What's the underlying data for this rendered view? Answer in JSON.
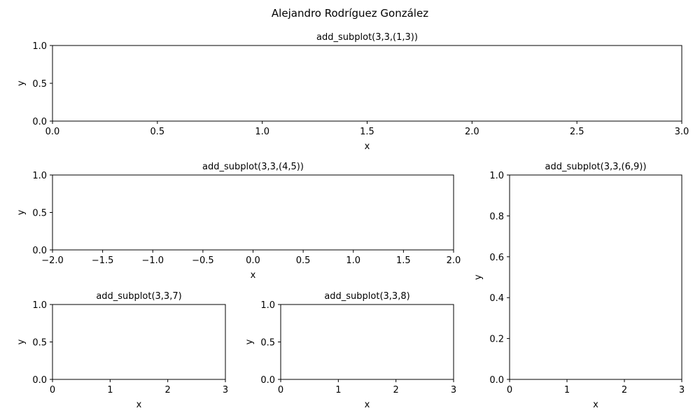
{
  "figure": {
    "suptitle": "Alejandro Rodríguez González"
  },
  "chart_data": [
    {
      "type": "line",
      "title": "add_subplot(3,3,(1,3))",
      "xlabel": "x",
      "ylabel": "y",
      "xlim": [
        0,
        3
      ],
      "ylim": [
        0,
        1
      ],
      "xticks": [
        0,
        0.5,
        1,
        1.5,
        2,
        2.5,
        3
      ],
      "xtick_labels": [
        "0.0",
        "0.5",
        "1.0",
        "1.5",
        "2.0",
        "2.5",
        "3.0"
      ],
      "yticks": [
        0,
        0.5,
        1
      ],
      "ytick_labels": [
        "0.0",
        "0.5",
        "1.0"
      ],
      "series": []
    },
    {
      "type": "line",
      "title": "add_subplot(3,3,(4,5))",
      "xlabel": "x",
      "ylabel": "y",
      "xlim": [
        -2,
        2
      ],
      "ylim": [
        0,
        1
      ],
      "xticks": [
        -2,
        -1.5,
        -1,
        -0.5,
        0,
        0.5,
        1,
        1.5,
        2
      ],
      "xtick_labels": [
        "−2.0",
        "−1.5",
        "−1.0",
        "−0.5",
        "0.0",
        "0.5",
        "1.0",
        "1.5",
        "2.0"
      ],
      "yticks": [
        0,
        0.5,
        1
      ],
      "ytick_labels": [
        "0.0",
        "0.5",
        "1.0"
      ],
      "series": []
    },
    {
      "type": "line",
      "title": "add_subplot(3,3,(6,9))",
      "xlabel": "x",
      "ylabel": "y",
      "xlim": [
        0,
        3
      ],
      "ylim": [
        0,
        1
      ],
      "xticks": [
        0,
        1,
        2,
        3
      ],
      "xtick_labels": [
        "0",
        "1",
        "2",
        "3"
      ],
      "yticks": [
        0,
        0.2,
        0.4,
        0.6,
        0.8,
        1
      ],
      "ytick_labels": [
        "0.0",
        "0.2",
        "0.4",
        "0.6",
        "0.8",
        "1.0"
      ],
      "series": []
    },
    {
      "type": "line",
      "title": "add_subplot(3,3,7)",
      "xlabel": "x",
      "ylabel": "y",
      "xlim": [
        0,
        3
      ],
      "ylim": [
        0,
        1
      ],
      "xticks": [
        0,
        1,
        2,
        3
      ],
      "xtick_labels": [
        "0",
        "1",
        "2",
        "3"
      ],
      "yticks": [
        0,
        0.5,
        1
      ],
      "ytick_labels": [
        "0.0",
        "0.5",
        "1.0"
      ],
      "series": []
    },
    {
      "type": "line",
      "title": "add_subplot(3,3,8)",
      "xlabel": "x",
      "ylabel": "y",
      "xlim": [
        0,
        3
      ],
      "ylim": [
        0,
        1
      ],
      "xticks": [
        0,
        1,
        2,
        3
      ],
      "xtick_labels": [
        "0",
        "1",
        "2",
        "3"
      ],
      "yticks": [
        0,
        0.5,
        1
      ],
      "ytick_labels": [
        "0.0",
        "0.5",
        "1.0"
      ],
      "series": []
    }
  ]
}
